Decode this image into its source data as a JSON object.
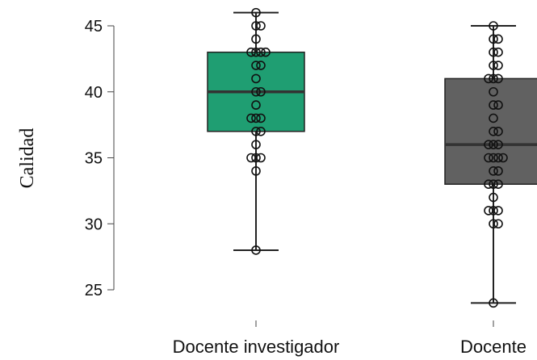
{
  "chart_data": {
    "type": "boxplot",
    "title": "",
    "xlabel": "",
    "ylabel": "Calidad",
    "ylim": [
      24,
      46.5
    ],
    "yticks": [
      25,
      30,
      35,
      40,
      45
    ],
    "grid": false,
    "legend": "none",
    "categories": [
      "Docente investigador",
      "Docente"
    ],
    "series": [
      {
        "category": "Docente investigador",
        "color": "#1f9e72",
        "min": 28,
        "q1": 37,
        "median": 40,
        "q3": 43,
        "max": 46,
        "points": [
          46,
          45,
          45,
          44,
          43,
          43,
          43,
          43,
          42,
          42,
          41,
          40,
          40,
          39,
          38,
          38,
          38,
          37,
          37,
          36,
          35,
          35,
          35,
          34,
          28
        ]
      },
      {
        "category": "Docente",
        "color": "#616161",
        "min": 24,
        "q1": 33,
        "median": 36,
        "q3": 41,
        "max": 45,
        "points": [
          45,
          44,
          44,
          43,
          43,
          42,
          42,
          41,
          41,
          41,
          40,
          39,
          39,
          38,
          37,
          37,
          36,
          36,
          36,
          35,
          35,
          35,
          35,
          34,
          34,
          33,
          33,
          33,
          32,
          31,
          31,
          31,
          30,
          30,
          24
        ]
      }
    ]
  }
}
